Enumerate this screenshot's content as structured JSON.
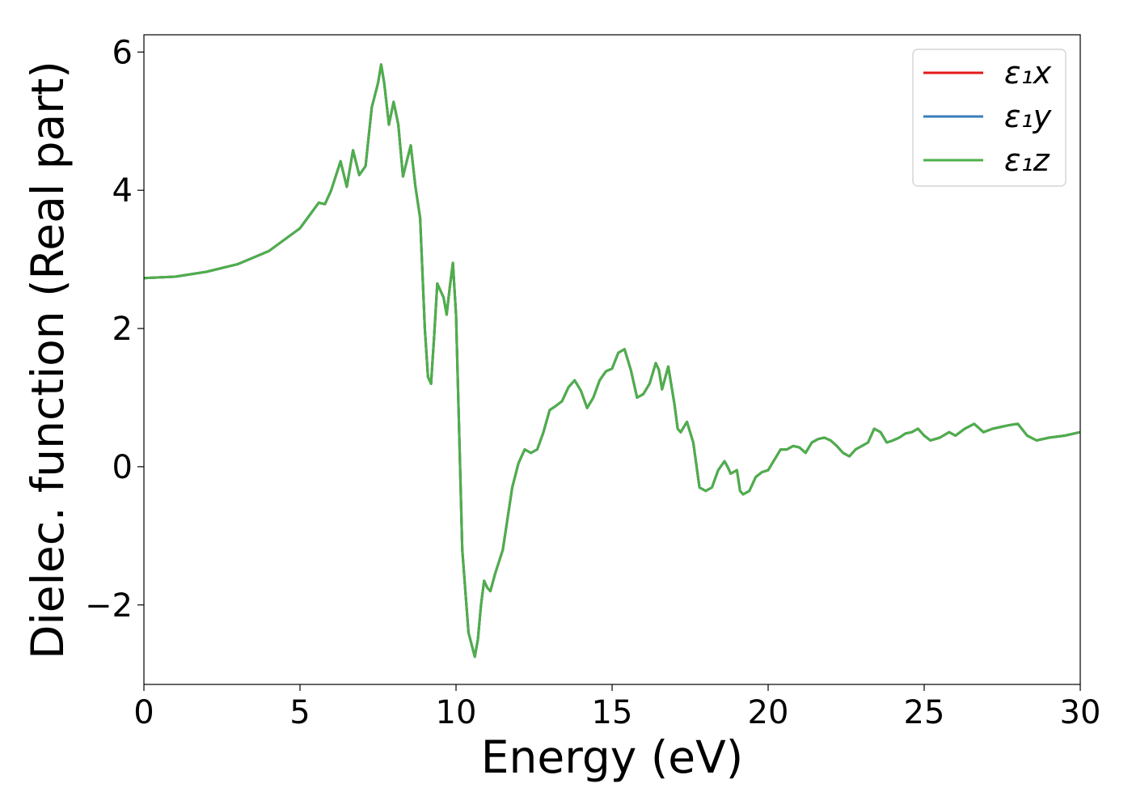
{
  "chart_data": {
    "type": "line",
    "title": "",
    "xlabel": "Energy (eV)",
    "ylabel": "Dielec. function (Real part)",
    "xlim": [
      0,
      30
    ],
    "ylim": [
      -3.15,
      6.25
    ],
    "xticks": [
      0,
      5,
      10,
      15,
      20,
      25,
      30
    ],
    "yticks": [
      -2,
      0,
      2,
      4,
      6
    ],
    "xtick_labels": [
      "0",
      "5",
      "10",
      "15",
      "20",
      "25",
      "30"
    ],
    "ytick_labels": [
      "−2",
      "0",
      "2",
      "4",
      "6"
    ],
    "grid": false,
    "legend_position": "top-right",
    "x": [
      0,
      1,
      2,
      3,
      4,
      5,
      5.6,
      5.8,
      6.0,
      6.3,
      6.5,
      6.7,
      6.9,
      7.1,
      7.3,
      7.5,
      7.6,
      7.7,
      7.85,
      8.0,
      8.15,
      8.3,
      8.4,
      8.55,
      8.7,
      8.85,
      9.0,
      9.1,
      9.2,
      9.3,
      9.4,
      9.5,
      9.6,
      9.7,
      9.8,
      9.9,
      10.0,
      10.1,
      10.2,
      10.4,
      10.6,
      10.7,
      10.8,
      10.9,
      11.0,
      11.1,
      11.25,
      11.5,
      11.8,
      12.0,
      12.2,
      12.4,
      12.6,
      12.8,
      13.0,
      13.2,
      13.4,
      13.6,
      13.8,
      14.0,
      14.2,
      14.4,
      14.6,
      14.8,
      15.0,
      15.2,
      15.4,
      15.6,
      15.8,
      16.0,
      16.2,
      16.4,
      16.5,
      16.6,
      16.8,
      17.0,
      17.1,
      17.2,
      17.4,
      17.6,
      17.8,
      18.0,
      18.2,
      18.4,
      18.6,
      18.7,
      18.8,
      19.0,
      19.1,
      19.2,
      19.4,
      19.6,
      19.8,
      20.0,
      20.2,
      20.4,
      20.6,
      20.8,
      21.0,
      21.2,
      21.4,
      21.6,
      21.8,
      22.0,
      22.2,
      22.4,
      22.6,
      22.8,
      23.0,
      23.2,
      23.4,
      23.6,
      23.8,
      24.0,
      24.2,
      24.4,
      24.6,
      24.8,
      25.0,
      25.2,
      25.5,
      25.8,
      26.0,
      26.3,
      26.6,
      26.9,
      27.2,
      27.5,
      27.7,
      28.0,
      28.3,
      28.6,
      29.0,
      29.5,
      30.0
    ],
    "series": [
      {
        "name": "ε₁x",
        "color": "#e41a1c"
      },
      {
        "name": "ε₁y",
        "color": "#377eb8"
      },
      {
        "name": "ε₁z",
        "color": "#4daf4a"
      }
    ],
    "y": [
      2.73,
      2.75,
      2.82,
      2.93,
      3.12,
      3.45,
      3.82,
      3.8,
      4.0,
      4.42,
      4.05,
      4.58,
      4.22,
      4.35,
      5.2,
      5.55,
      5.82,
      5.55,
      4.95,
      5.28,
      4.95,
      4.2,
      4.38,
      4.65,
      4.05,
      3.6,
      2.0,
      1.3,
      1.2,
      1.9,
      2.65,
      2.55,
      2.45,
      2.2,
      2.6,
      2.95,
      2.2,
      0.5,
      -1.2,
      -2.4,
      -2.75,
      -2.5,
      -2.0,
      -1.65,
      -1.75,
      -1.8,
      -1.55,
      -1.2,
      -0.3,
      0.05,
      0.25,
      0.2,
      0.25,
      0.5,
      0.82,
      0.88,
      0.95,
      1.15,
      1.25,
      1.1,
      0.85,
      1.0,
      1.25,
      1.38,
      1.42,
      1.65,
      1.7,
      1.4,
      1.0,
      1.05,
      1.2,
      1.5,
      1.4,
      1.12,
      1.45,
      0.9,
      0.55,
      0.5,
      0.65,
      0.35,
      -0.3,
      -0.35,
      -0.3,
      -0.05,
      0.08,
      0.0,
      -0.1,
      -0.05,
      -0.35,
      -0.4,
      -0.35,
      -0.15,
      -0.08,
      -0.05,
      0.1,
      0.25,
      0.25,
      0.3,
      0.28,
      0.2,
      0.35,
      0.4,
      0.42,
      0.38,
      0.3,
      0.2,
      0.15,
      0.25,
      0.3,
      0.35,
      0.55,
      0.5,
      0.35,
      0.38,
      0.42,
      0.48,
      0.5,
      0.55,
      0.45,
      0.38,
      0.42,
      0.5,
      0.45,
      0.55,
      0.62,
      0.5,
      0.55,
      0.58,
      0.6,
      0.62,
      0.45,
      0.38,
      0.42,
      0.45,
      0.5
    ]
  }
}
